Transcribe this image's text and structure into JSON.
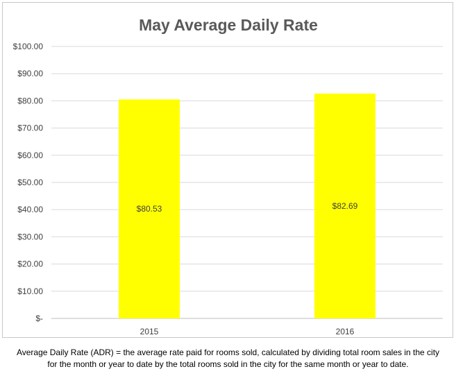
{
  "chart_data": {
    "type": "bar",
    "title": "May Average Daily Rate",
    "categories": [
      "2015",
      "2016"
    ],
    "values": [
      80.53,
      82.69
    ],
    "data_labels": [
      "$80.53",
      "$82.69"
    ],
    "ylim": [
      0,
      100
    ],
    "y_ticks": [
      0,
      10,
      20,
      30,
      40,
      50,
      60,
      70,
      80,
      90,
      100
    ],
    "y_tick_labels": [
      "$-",
      "$10.00",
      "$20.00",
      "$30.00",
      "$40.00",
      "$50.00",
      "$60.00",
      "$70.00",
      "$80.00",
      "$90.00",
      "$100.00"
    ],
    "grid": true,
    "legend": "none",
    "bar_color": "#FFFF00",
    "grid_color": "#d9d9d9"
  },
  "footnote": {
    "line1": "Average Daily Rate (ADR) = the average rate paid for rooms sold, calculated by dividing total room sales in the city",
    "line2": "for the month or year to date by the total rooms sold in the city for the same month or year to date."
  }
}
